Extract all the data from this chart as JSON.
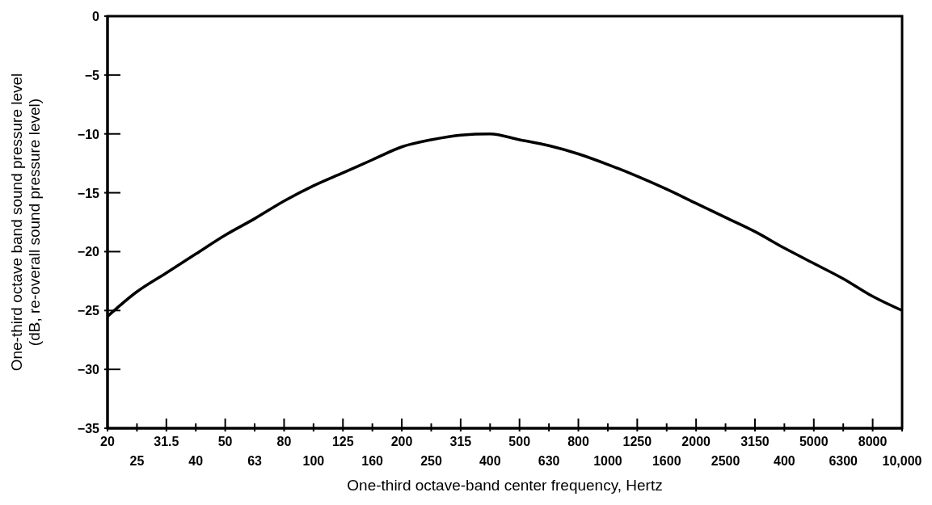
{
  "chart_data": {
    "type": "line",
    "xlabel": "One-third octave-band center frequency, Hertz",
    "ylabel": "One-third octave band sound pressure level\n(dB, re-overall sound pressure level)",
    "categories": [
      "20",
      "25",
      "31.5",
      "40",
      "50",
      "63",
      "80",
      "100",
      "125",
      "160",
      "200",
      "250",
      "315",
      "400",
      "500",
      "630",
      "800",
      "1000",
      "1250",
      "1600",
      "2000",
      "2500",
      "3150",
      "400",
      "5000",
      "6300",
      "8000",
      "10,000"
    ],
    "series": [
      {
        "color": "#000000",
        "values": [
          -25.5,
          -23.4,
          -21.8,
          -20.2,
          -18.6,
          -17.2,
          -15.7,
          -14.4,
          -13.3,
          -12.2,
          -11.1,
          -10.5,
          -10.1,
          -10.0,
          -10.5,
          -11.0,
          -11.7,
          -12.6,
          -13.6,
          -14.7,
          -15.9,
          -17.1,
          -18.3,
          -19.7,
          -21.0,
          -22.3,
          -23.8,
          -25.0
        ]
      }
    ],
    "ylim": [
      -35,
      0
    ],
    "yticks": [
      0,
      -5,
      -10,
      -15,
      -20,
      -25,
      -30,
      -35
    ],
    "grid": false,
    "legend": false,
    "marker": "none",
    "line_style": "solid"
  }
}
